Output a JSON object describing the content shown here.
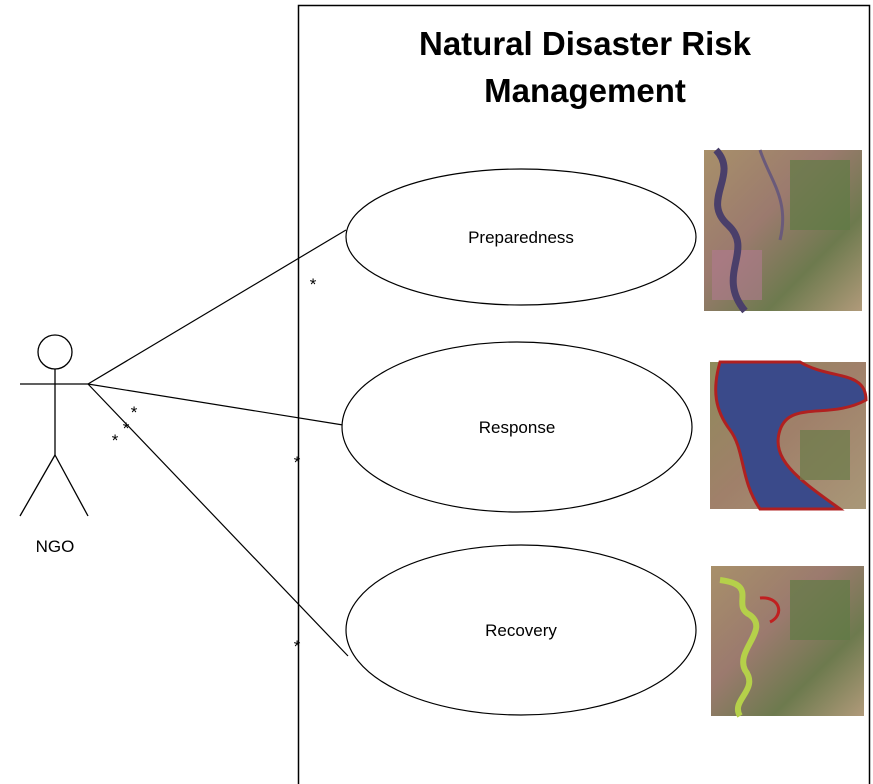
{
  "system": {
    "title": "Natural Disaster Risk Management"
  },
  "actor": {
    "label": "NGO"
  },
  "use_cases": [
    {
      "label": "Preparedness"
    },
    {
      "label": "Response"
    },
    {
      "label": "Recovery"
    }
  ],
  "associations": [
    {
      "actor_multiplicity": "*",
      "use_case_multiplicity": "*"
    },
    {
      "actor_multiplicity": "*",
      "use_case_multiplicity": "*"
    },
    {
      "actor_multiplicity": "*",
      "use_case_multiplicity": "*"
    }
  ]
}
